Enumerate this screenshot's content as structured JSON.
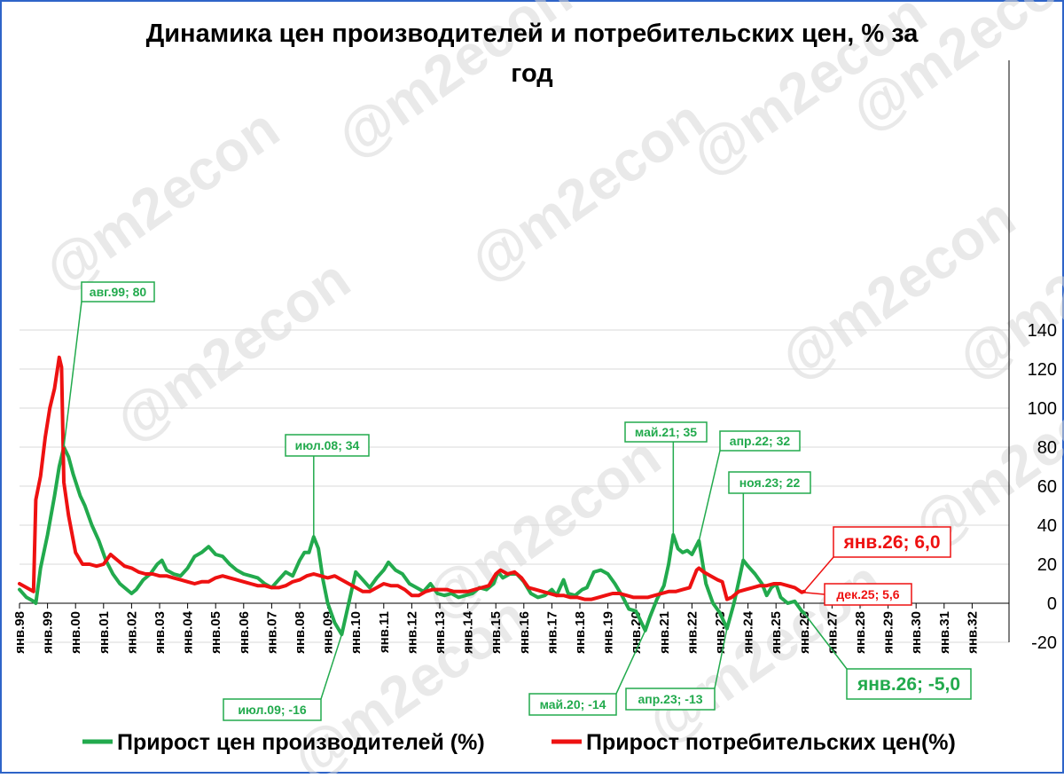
{
  "chart_data": {
    "type": "line",
    "title_line1": "Динамика цен производителей и потребительских цен, % за",
    "title_line2": "год",
    "ylim": [
      -20,
      140
    ],
    "yticks": [
      -20,
      0,
      20,
      40,
      60,
      80,
      100,
      120,
      140
    ],
    "x_tick_labels": [
      "янв.98",
      "янв.99",
      "янв.00",
      "янв.01",
      "янв.02",
      "янв.03",
      "янв.04",
      "янв.05",
      "янв.06",
      "янв.07",
      "янв.08",
      "янв.09",
      "янв.10",
      "янв.11",
      "янв.12",
      "янв.13",
      "янв.14",
      "янв.15",
      "янв.16",
      "янв.17",
      "янв.18",
      "янв.19",
      "янв.20",
      "янв.21",
      "янв.22",
      "янв.23",
      "янв.24",
      "янв.25",
      "янв.26",
      "янв.27",
      "янв.28",
      "янв.29",
      "янв.30",
      "янв.31",
      "янв.32"
    ],
    "watermark": "@m2econ",
    "series": [
      {
        "name": "Прирост цен производителей (%)",
        "color": "#22aa4d",
        "points": [
          [
            "1998-01",
            7
          ],
          [
            "1998-04",
            3
          ],
          [
            "1998-07",
            1
          ],
          [
            "1998-08",
            0
          ],
          [
            "1998-10",
            18
          ],
          [
            "1999-01",
            35
          ],
          [
            "1999-04",
            55
          ],
          [
            "1999-06",
            70
          ],
          [
            "1999-08",
            80
          ],
          [
            "1999-10",
            75
          ],
          [
            "1999-12",
            66
          ],
          [
            "2000-03",
            55
          ],
          [
            "2000-05",
            50
          ],
          [
            "2000-08",
            40
          ],
          [
            "2000-11",
            32
          ],
          [
            "2001-02",
            22
          ],
          [
            "2001-05",
            15
          ],
          [
            "2001-08",
            10
          ],
          [
            "2001-11",
            7
          ],
          [
            "2002-01",
            5
          ],
          [
            "2002-03",
            7
          ],
          [
            "2002-06",
            12
          ],
          [
            "2002-09",
            15
          ],
          [
            "2002-12",
            20
          ],
          [
            "2003-02",
            22
          ],
          [
            "2003-04",
            17
          ],
          [
            "2003-07",
            15
          ],
          [
            "2003-10",
            14
          ],
          [
            "2004-01",
            18
          ],
          [
            "2004-04",
            24
          ],
          [
            "2004-07",
            26
          ],
          [
            "2004-10",
            29
          ],
          [
            "2005-01",
            25
          ],
          [
            "2005-04",
            24
          ],
          [
            "2005-07",
            20
          ],
          [
            "2005-10",
            17
          ],
          [
            "2006-01",
            15
          ],
          [
            "2006-04",
            14
          ],
          [
            "2006-07",
            13
          ],
          [
            "2006-10",
            10
          ],
          [
            "2007-01",
            8
          ],
          [
            "2007-04",
            12
          ],
          [
            "2007-07",
            16
          ],
          [
            "2007-10",
            14
          ],
          [
            "2008-01",
            22
          ],
          [
            "2008-03",
            26
          ],
          [
            "2008-05",
            26
          ],
          [
            "2008-07",
            34
          ],
          [
            "2008-09",
            28
          ],
          [
            "2008-11",
            12
          ],
          [
            "2009-01",
            0
          ],
          [
            "2009-04",
            -10
          ],
          [
            "2009-07",
            -16
          ],
          [
            "2009-10",
            0
          ],
          [
            "2010-01",
            16
          ],
          [
            "2010-04",
            12
          ],
          [
            "2010-07",
            8
          ],
          [
            "2010-10",
            13
          ],
          [
            "2011-01",
            17
          ],
          [
            "2011-03",
            21
          ],
          [
            "2011-06",
            17
          ],
          [
            "2011-09",
            15
          ],
          [
            "2011-12",
            10
          ],
          [
            "2012-03",
            8
          ],
          [
            "2012-06",
            6
          ],
          [
            "2012-09",
            10
          ],
          [
            "2012-12",
            5
          ],
          [
            "2013-03",
            4
          ],
          [
            "2013-06",
            5
          ],
          [
            "2013-09",
            3
          ],
          [
            "2013-12",
            4
          ],
          [
            "2014-03",
            5
          ],
          [
            "2014-06",
            8
          ],
          [
            "2014-09",
            7
          ],
          [
            "2014-12",
            10
          ],
          [
            "2015-02",
            16
          ],
          [
            "2015-04",
            13
          ],
          [
            "2015-07",
            15
          ],
          [
            "2015-10",
            15
          ],
          [
            "2016-01",
            11
          ],
          [
            "2016-04",
            5
          ],
          [
            "2016-07",
            3
          ],
          [
            "2016-10",
            4
          ],
          [
            "2017-01",
            7
          ],
          [
            "2017-03",
            4
          ],
          [
            "2017-06",
            12
          ],
          [
            "2017-08",
            5
          ],
          [
            "2017-11",
            4
          ],
          [
            "2018-02",
            7
          ],
          [
            "2018-04",
            8
          ],
          [
            "2018-07",
            16
          ],
          [
            "2018-10",
            17
          ],
          [
            "2019-01",
            15
          ],
          [
            "2019-04",
            10
          ],
          [
            "2019-07",
            4
          ],
          [
            "2019-10",
            -3
          ],
          [
            "2020-01",
            -4
          ],
          [
            "2020-05",
            -14
          ],
          [
            "2020-07",
            -7
          ],
          [
            "2020-10",
            2
          ],
          [
            "2021-01",
            9
          ],
          [
            "2021-03",
            20
          ],
          [
            "2021-05",
            35
          ],
          [
            "2021-07",
            28
          ],
          [
            "2021-09",
            26
          ],
          [
            "2021-11",
            27
          ],
          [
            "2022-01",
            25
          ],
          [
            "2022-04",
            32
          ],
          [
            "2022-07",
            10
          ],
          [
            "2022-10",
            0
          ],
          [
            "2023-01",
            -5
          ],
          [
            "2023-04",
            -13
          ],
          [
            "2023-07",
            0
          ],
          [
            "2023-09",
            11
          ],
          [
            "2023-11",
            22
          ],
          [
            "2024-01",
            19
          ],
          [
            "2024-04",
            15
          ],
          [
            "2024-07",
            10
          ],
          [
            "2024-09",
            4
          ],
          [
            "2024-11",
            8
          ],
          [
            "2025-01",
            10
          ],
          [
            "2025-03",
            3
          ],
          [
            "2025-06",
            0
          ],
          [
            "2025-09",
            1
          ],
          [
            "2025-12",
            -4
          ],
          [
            "2026-01",
            -5
          ]
        ]
      },
      {
        "name": "Прирост потребительских цен(%)",
        "color": "#ee1111",
        "points": [
          [
            "1998-01",
            10
          ],
          [
            "1998-04",
            8
          ],
          [
            "1998-07",
            6
          ],
          [
            "1998-08",
            53
          ],
          [
            "1998-10",
            65
          ],
          [
            "1998-12",
            85
          ],
          [
            "1999-02",
            100
          ],
          [
            "1999-04",
            110
          ],
          [
            "1999-06",
            126
          ],
          [
            "1999-07",
            121
          ],
          [
            "1999-08",
            62
          ],
          [
            "1999-10",
            45
          ],
          [
            "2000-01",
            26
          ],
          [
            "2000-04",
            20
          ],
          [
            "2000-07",
            20
          ],
          [
            "2000-10",
            19
          ],
          [
            "2001-01",
            20
          ],
          [
            "2001-04",
            25
          ],
          [
            "2001-07",
            22
          ],
          [
            "2001-10",
            19
          ],
          [
            "2002-01",
            18
          ],
          [
            "2002-04",
            16
          ],
          [
            "2002-07",
            15
          ],
          [
            "2002-10",
            15
          ],
          [
            "2003-01",
            14
          ],
          [
            "2003-04",
            14
          ],
          [
            "2003-07",
            13
          ],
          [
            "2003-10",
            12
          ],
          [
            "2004-01",
            11
          ],
          [
            "2004-04",
            10
          ],
          [
            "2004-07",
            11
          ],
          [
            "2004-10",
            11
          ],
          [
            "2005-01",
            13
          ],
          [
            "2005-04",
            14
          ],
          [
            "2005-07",
            13
          ],
          [
            "2005-10",
            12
          ],
          [
            "2006-01",
            11
          ],
          [
            "2006-04",
            10
          ],
          [
            "2006-07",
            9
          ],
          [
            "2006-10",
            9
          ],
          [
            "2007-01",
            8
          ],
          [
            "2007-04",
            8
          ],
          [
            "2007-07",
            9
          ],
          [
            "2007-10",
            11
          ],
          [
            "2008-01",
            12
          ],
          [
            "2008-04",
            14
          ],
          [
            "2008-07",
            15
          ],
          [
            "2008-10",
            14
          ],
          [
            "2009-01",
            13
          ],
          [
            "2009-04",
            14
          ],
          [
            "2009-07",
            12
          ],
          [
            "2009-10",
            10
          ],
          [
            "2010-01",
            8
          ],
          [
            "2010-04",
            6
          ],
          [
            "2010-07",
            6
          ],
          [
            "2010-10",
            8
          ],
          [
            "2011-01",
            10
          ],
          [
            "2011-04",
            9
          ],
          [
            "2011-07",
            9
          ],
          [
            "2011-10",
            7
          ],
          [
            "2012-01",
            4
          ],
          [
            "2012-04",
            4
          ],
          [
            "2012-07",
            6
          ],
          [
            "2012-10",
            7
          ],
          [
            "2013-01",
            7
          ],
          [
            "2013-04",
            7
          ],
          [
            "2013-07",
            6
          ],
          [
            "2013-10",
            6
          ],
          [
            "2014-01",
            6
          ],
          [
            "2014-04",
            7
          ],
          [
            "2014-07",
            8
          ],
          [
            "2014-10",
            9
          ],
          [
            "2015-01",
            15
          ],
          [
            "2015-03",
            17
          ],
          [
            "2015-06",
            15
          ],
          [
            "2015-09",
            16
          ],
          [
            "2015-12",
            13
          ],
          [
            "2016-03",
            8
          ],
          [
            "2016-06",
            7
          ],
          [
            "2016-09",
            6
          ],
          [
            "2016-12",
            5
          ],
          [
            "2017-03",
            4
          ],
          [
            "2017-06",
            4
          ],
          [
            "2017-09",
            3
          ],
          [
            "2017-12",
            3
          ],
          [
            "2018-03",
            2
          ],
          [
            "2018-06",
            2
          ],
          [
            "2018-09",
            3
          ],
          [
            "2018-12",
            4
          ],
          [
            "2019-03",
            5
          ],
          [
            "2019-06",
            5
          ],
          [
            "2019-09",
            4
          ],
          [
            "2019-12",
            3
          ],
          [
            "2020-03",
            3
          ],
          [
            "2020-06",
            3
          ],
          [
            "2020-09",
            4
          ],
          [
            "2020-12",
            5
          ],
          [
            "2021-03",
            6
          ],
          [
            "2021-06",
            6
          ],
          [
            "2021-09",
            7
          ],
          [
            "2021-12",
            8
          ],
          [
            "2022-03",
            17
          ],
          [
            "2022-04",
            18
          ],
          [
            "2022-06",
            16
          ],
          [
            "2022-09",
            14
          ],
          [
            "2022-12",
            12
          ],
          [
            "2023-02",
            11
          ],
          [
            "2023-04",
            2
          ],
          [
            "2023-06",
            3
          ],
          [
            "2023-09",
            6
          ],
          [
            "2023-12",
            7
          ],
          [
            "2024-03",
            8
          ],
          [
            "2024-06",
            9
          ],
          [
            "2024-09",
            9
          ],
          [
            "2024-12",
            10
          ],
          [
            "2025-03",
            10
          ],
          [
            "2025-06",
            9
          ],
          [
            "2025-09",
            8
          ],
          [
            "2025-12",
            5.6
          ],
          [
            "2026-01",
            6
          ]
        ]
      }
    ],
    "annotations": [
      {
        "text": "авг.99; 80",
        "x": "1999-08",
        "y": 80,
        "series": 0
      },
      {
        "text": "июл.08; 34",
        "x": "2008-07",
        "y": 34,
        "series": 0
      },
      {
        "text": "июл.09; -16",
        "x": "2009-07",
        "y": -16,
        "series": 0
      },
      {
        "text": "май.20; -14",
        "x": "2020-05",
        "y": -14,
        "series": 0
      },
      {
        "text": "май.21; 35",
        "x": "2021-05",
        "y": 35,
        "series": 0
      },
      {
        "text": "апр.22; 32",
        "x": "2022-04",
        "y": 32,
        "series": 0
      },
      {
        "text": "апр.23; -13",
        "x": "2023-04",
        "y": -13,
        "series": 0
      },
      {
        "text": "ноя.23; 22",
        "x": "2023-11",
        "y": 22,
        "series": 0
      },
      {
        "text": "янв.26; -5,0",
        "x": "2026-01",
        "y": -5,
        "series": 0
      },
      {
        "text": "янв.26; 6,0",
        "x": "2026-01",
        "y": 6,
        "series": 1
      },
      {
        "text": "дек.25; 5,6",
        "x": "2025-12",
        "y": 5.6,
        "series": 1
      }
    ]
  }
}
